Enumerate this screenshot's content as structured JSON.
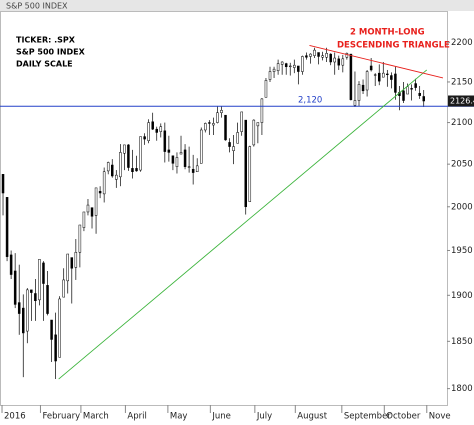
{
  "chart_data": {
    "type": "candlestick",
    "title": "S&P 500 INDEX",
    "annotations": [
      "TICKER: .SPX",
      "S&P 500 INDEX",
      "DAILY SCALE"
    ],
    "note_lines": [
      "2 MONTH-LONG",
      "DESCENDING TRIANGLE"
    ],
    "note_color": "#e8201c",
    "x": [
      0,
      2,
      4,
      6,
      8,
      10,
      12,
      14,
      16,
      18,
      20,
      22,
      24,
      26,
      28,
      30,
      32,
      34,
      36,
      38,
      40,
      42,
      44,
      46,
      48,
      50,
      52,
      54,
      56,
      58,
      60,
      62,
      64,
      66,
      68,
      70,
      72,
      74,
      76,
      78,
      80,
      82,
      84,
      86,
      88,
      90,
      92,
      94,
      96,
      98,
      100,
      102,
      104,
      106,
      108,
      110,
      112,
      114,
      116,
      118,
      120,
      122,
      124,
      126,
      128,
      130,
      132,
      134,
      136,
      138,
      140,
      142,
      144,
      146,
      148,
      150,
      152,
      154,
      156,
      158,
      160,
      162,
      164,
      166,
      168,
      170,
      172,
      174,
      176,
      178,
      180,
      182,
      184,
      186,
      188,
      190,
      192,
      194,
      196,
      198,
      200,
      202,
      204,
      206,
      208
    ],
    "open": [
      2038,
      2011,
      1945,
      1927,
      1892,
      1886,
      1861,
      1906,
      1902,
      1895,
      1936,
      1911,
      1873,
      1857,
      1833,
      1898,
      1916,
      1942,
      1931,
      1948,
      1976,
      1994,
      1999,
      1990,
      2018,
      2015,
      2042,
      2049,
      2032,
      2035,
      2063,
      2073,
      2045,
      2045,
      2043,
      2083,
      2078,
      2101,
      2092,
      2089,
      2090,
      2067,
      2060,
      2047,
      2062,
      2067,
      2046,
      2044,
      2041,
      2051,
      2091,
      2100,
      2097,
      2100,
      2112,
      2109,
      2076,
      2066,
      2075,
      2089,
      2103,
      2006,
      2073,
      2096,
      2100,
      2131,
      2153,
      2163,
      2164,
      2172,
      2173,
      2169,
      2168,
      2170,
      2163,
      2183,
      2182,
      2183,
      2187,
      2181,
      2181,
      2185,
      2175,
      2179,
      2171,
      2181,
      2185,
      2121,
      2127,
      2146,
      2140,
      2170,
      2159,
      2161,
      2156,
      2160,
      2158,
      2160,
      2137,
      2139,
      2135,
      2142,
      2148,
      2136,
      2132
    ],
    "high": [
      2038,
      2011,
      1950,
      1947,
      1934,
      1901,
      1908,
      1906,
      1918,
      1940,
      1938,
      1927,
      1873,
      1881,
      1899,
      1930,
      1946,
      1942,
      1963,
      1979,
      1994,
      2009,
      1999,
      2022,
      2024,
      2046,
      2053,
      2056,
      2043,
      2074,
      2073,
      2074,
      2067,
      2060,
      2083,
      2087,
      2104,
      2112,
      2095,
      2099,
      2100,
      2084,
      2060,
      2064,
      2084,
      2074,
      2071,
      2061,
      2057,
      2094,
      2100,
      2103,
      2106,
      2120,
      2120,
      2109,
      2081,
      2085,
      2100,
      2113,
      2103,
      2072,
      2104,
      2100,
      2130,
      2155,
      2169,
      2169,
      2178,
      2176,
      2174,
      2174,
      2178,
      2170,
      2183,
      2187,
      2186,
      2193,
      2187,
      2188,
      2193,
      2186,
      2187,
      2183,
      2184,
      2187,
      2185,
      2163,
      2151,
      2153,
      2165,
      2180,
      2161,
      2172,
      2175,
      2165,
      2162,
      2169,
      2145,
      2150,
      2148,
      2147,
      2154,
      2145,
      2140
    ],
    "low": [
      1990,
      1938,
      1918,
      1886,
      1857,
      1812,
      1848,
      1872,
      1872,
      1889,
      1872,
      1878,
      1828,
      1810,
      1833,
      1898,
      1902,
      1891,
      1917,
      1931,
      1972,
      1990,
      1975,
      1969,
      2010,
      2005,
      2038,
      2034,
      2022,
      2024,
      2043,
      2042,
      2033,
      2041,
      2041,
      2073,
      2075,
      2091,
      2078,
      2082,
      2052,
      2053,
      2043,
      2039,
      2063,
      2044,
      2040,
      2026,
      2041,
      2051,
      2088,
      2085,
      2085,
      2099,
      2106,
      2078,
      2064,
      2050,
      2075,
      2084,
      1991,
      2006,
      2071,
      2075,
      2085,
      2131,
      2150,
      2155,
      2159,
      2159,
      2159,
      2158,
      2161,
      2147,
      2159,
      2178,
      2173,
      2180,
      2172,
      2177,
      2175,
      2171,
      2159,
      2165,
      2162,
      2178,
      2127,
      2119,
      2120,
      2135,
      2132,
      2163,
      2145,
      2146,
      2156,
      2144,
      2142,
      2128,
      2115,
      2124,
      2135,
      2127,
      2139,
      2129,
      2119
    ],
    "close": [
      2016,
      1943,
      1923,
      1890,
      1880,
      1859,
      1906,
      1903,
      1894,
      1940,
      1913,
      1880,
      1852,
      1829,
      1896,
      1917,
      1946,
      1930,
      1948,
      1979,
      1994,
      2002,
      1989,
      2022,
      2016,
      2041,
      2052,
      2036,
      2037,
      2064,
      2073,
      2046,
      2041,
      2042,
      2083,
      2080,
      2100,
      2092,
      2088,
      2095,
      2065,
      2064,
      2051,
      2058,
      2064,
      2047,
      2047,
      2040,
      2048,
      2091,
      2099,
      2099,
      2099,
      2112,
      2115,
      2079,
      2071,
      2071,
      2088,
      2113,
      2000,
      2071,
      2103,
      2100,
      2129,
      2152,
      2163,
      2166,
      2173,
      2175,
      2169,
      2170,
      2171,
      2163,
      2182,
      2181,
      2185,
      2190,
      2182,
      2183,
      2186,
      2175,
      2180,
      2171,
      2179,
      2186,
      2128,
      2127,
      2147,
      2139,
      2163,
      2165,
      2159,
      2151,
      2161,
      2159,
      2153,
      2137,
      2133,
      2127,
      2144,
      2141,
      2143,
      2133,
      2126.4
    ],
    "up_color": "#ffffff",
    "down_color": "#000000",
    "xlim": [
      -1,
      220
    ],
    "xticks": [
      {
        "value": 0,
        "label": "2016"
      },
      {
        "value": 19,
        "label": "February"
      },
      {
        "value": 39,
        "label": "March"
      },
      {
        "value": 61,
        "label": "April"
      },
      {
        "value": 82,
        "label": "May"
      },
      {
        "value": 103,
        "label": "June"
      },
      {
        "value": 125,
        "label": "July"
      },
      {
        "value": 145,
        "label": "August"
      },
      {
        "value": 168,
        "label": "September"
      },
      {
        "value": 189,
        "label": "October"
      },
      {
        "value": 210,
        "label": "Nove"
      }
    ],
    "ylim": [
      1783,
      2226
    ],
    "yticks": [
      1800,
      1850,
      1900,
      1950,
      2000,
      2050,
      2100,
      2150,
      2200
    ],
    "log": true,
    "hline": {
      "value": 2120,
      "label": "2,120",
      "color": "#2340c8"
    },
    "trend_lines": [
      {
        "color": "#3cb43c",
        "points": [
          [
            28,
            1810
          ],
          [
            210,
            2165
          ]
        ]
      },
      {
        "color": "#e8201c",
        "points": [
          [
            152,
            2196
          ],
          [
            218,
            2155
          ]
        ]
      }
    ],
    "last_label_color": "#1a1a1a"
  }
}
